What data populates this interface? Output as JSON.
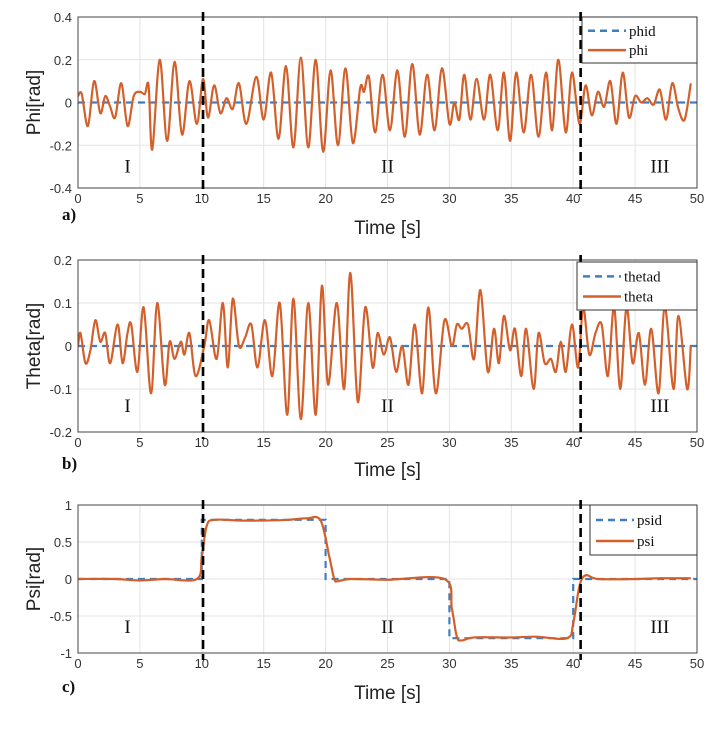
{
  "colors": {
    "desired": "#3f7fbf",
    "actual": "#d3602b",
    "phase_line": "#000000",
    "grid": "#e3e3e3"
  },
  "chart_data": [
    {
      "type": "line",
      "panel_label": "a)",
      "title": "",
      "xlabel": "Time [s]",
      "ylabel": "Phi[rad]",
      "xlim": [
        0,
        50
      ],
      "ylim": [
        -0.4,
        0.4
      ],
      "grid": true,
      "legend_placement": "top-right",
      "xticks": [
        "0",
        "5",
        "10",
        "15",
        "20",
        "25",
        "30",
        "35",
        "40",
        "45",
        "50"
      ],
      "yticks": [
        "-0.4",
        "-0.2",
        "0",
        "0.2",
        "0.4"
      ],
      "ytick_values": [
        -0.4,
        -0.2,
        0,
        0.2,
        0.4
      ],
      "phase_lines": [
        10.1,
        40.6
      ],
      "phases": [
        {
          "label": "I",
          "t": 4,
          "y": -0.3
        },
        {
          "label": "II",
          "t": 25,
          "y": -0.3
        },
        {
          "label": "III",
          "t": 47,
          "y": -0.3
        }
      ],
      "series": [
        {
          "name": "phid",
          "style": "dashed",
          "x": [
            0,
            50
          ],
          "y": [
            0,
            0
          ]
        },
        {
          "name": "phi",
          "style": "solid",
          "x": [
            0,
            0.3,
            0.8,
            1.3,
            1.8,
            2.2,
            2.6,
            3.0,
            3.5,
            4.0,
            4.5,
            5.0,
            5.4,
            5.7,
            6.0,
            6.6,
            7.2,
            7.8,
            8.4,
            9.0,
            9.6,
            10.1,
            10.5,
            11.0,
            11.5,
            12.0,
            12.5,
            13.0,
            13.6,
            14.4,
            15.0,
            15.6,
            16.2,
            16.8,
            17.4,
            18.0,
            18.6,
            19.2,
            19.8,
            20.4,
            21.0,
            21.6,
            22.2,
            22.8,
            23.1,
            23.5,
            24.0,
            24.6,
            25.2,
            25.8,
            26.4,
            27.0,
            27.6,
            28.2,
            28.8,
            29.4,
            30.0,
            30.4,
            30.8,
            31.2,
            31.7,
            32.2,
            32.8,
            33.3,
            33.9,
            34.4,
            34.9,
            35.4,
            36.0,
            36.6,
            37.2,
            37.8,
            38.3,
            38.8,
            39.4,
            39.9,
            40.5,
            41.0,
            41.5,
            42.0,
            42.5,
            43.0,
            43.5,
            44.0,
            44.5,
            45.0,
            45.5,
            46.0,
            46.5,
            47.0,
            47.5,
            48.0,
            48.5,
            49.0,
            49.5
          ],
          "y": [
            0.03,
            0.04,
            -0.11,
            0.1,
            -0.05,
            0.03,
            -0.02,
            -0.07,
            0.09,
            -0.11,
            0.03,
            0.05,
            0.04,
            0.08,
            -0.22,
            0.2,
            -0.18,
            0.19,
            -0.15,
            0.1,
            -0.1,
            0.11,
            -0.07,
            0.08,
            -0.05,
            0.02,
            -0.03,
            0.09,
            -0.1,
            0.12,
            -0.08,
            0.14,
            -0.17,
            0.17,
            -0.21,
            0.21,
            -0.21,
            0.2,
            -0.23,
            0.15,
            -0.2,
            0.16,
            -0.19,
            0.07,
            0.05,
            0.12,
            -0.14,
            0.13,
            -0.13,
            0.15,
            -0.16,
            0.18,
            -0.15,
            0.13,
            -0.13,
            0.16,
            -0.1,
            0.0,
            -0.08,
            0.13,
            -0.08,
            0.11,
            -0.08,
            0.13,
            -0.13,
            0.14,
            -0.18,
            0.14,
            -0.14,
            0.13,
            -0.16,
            0.14,
            -0.13,
            0.2,
            -0.14,
            0.14,
            -0.1,
            0.08,
            -0.06,
            0.05,
            -0.02,
            0.1,
            -0.1,
            0.14,
            -0.07,
            0.03,
            0.0,
            0.02,
            -0.01,
            0.06,
            -0.08,
            0.09,
            -0.03,
            -0.08,
            0.09
          ]
        }
      ]
    },
    {
      "type": "line",
      "panel_label": "b)",
      "title": "",
      "xlabel": "Time [s]",
      "ylabel": "Theta[rad]",
      "xlim": [
        0,
        50
      ],
      "ylim": [
        -0.2,
        0.2
      ],
      "grid": true,
      "legend_placement": "top-right",
      "xticks": [
        "0",
        "5",
        "10",
        "15",
        "20",
        "25",
        "30",
        "35",
        "40",
        "45",
        "50"
      ],
      "yticks": [
        "-0.2",
        "-0.1",
        "0",
        "0.1",
        "0.2"
      ],
      "ytick_values": [
        -0.2,
        -0.1,
        0,
        0.1,
        0.2
      ],
      "phase_lines": [
        10.1,
        40.6
      ],
      "phases": [
        {
          "label": "I",
          "t": 4,
          "y": -0.14
        },
        {
          "label": "II",
          "t": 25,
          "y": -0.14
        },
        {
          "label": "III",
          "t": 47,
          "y": -0.14
        }
      ],
      "series": [
        {
          "name": "thetad",
          "style": "dashed",
          "x": [
            0,
            50
          ],
          "y": [
            0,
            0
          ]
        },
        {
          "name": "theta",
          "style": "solid",
          "x": [
            0,
            0.2,
            0.6,
            1.0,
            1.4,
            1.8,
            2.2,
            2.6,
            3.2,
            3.6,
            4.0,
            4.3,
            4.8,
            5.3,
            5.9,
            6.4,
            7.0,
            7.4,
            7.8,
            8.3,
            8.6,
            9.0,
            9.5,
            10.2,
            10.6,
            11.2,
            11.7,
            12.1,
            12.5,
            13.0,
            13.5,
            14.0,
            14.5,
            15.1,
            15.7,
            16.3,
            16.9,
            17.4,
            18.0,
            18.6,
            19.2,
            19.7,
            20.2,
            20.9,
            21.5,
            22.0,
            22.6,
            23.2,
            23.8,
            24.2,
            24.7,
            25.2,
            25.7,
            26.2,
            26.7,
            27.2,
            27.8,
            28.3,
            28.9,
            29.6,
            30.2,
            30.6,
            31.0,
            31.5,
            32.0,
            32.5,
            33.1,
            33.6,
            34.0,
            34.4,
            34.9,
            35.3,
            35.8,
            36.2,
            36.8,
            37.2,
            37.7,
            38.2,
            38.6,
            39.0,
            39.4,
            39.9,
            40.4,
            40.8,
            41.3,
            41.8,
            42.3,
            42.8,
            43.3,
            43.8,
            44.3,
            44.8,
            45.3,
            45.8,
            46.3,
            46.9,
            47.4,
            48.1,
            48.5,
            49.2,
            49.5
          ],
          "y": [
            0.0,
            0.03,
            -0.04,
            -0.01,
            0.06,
            0.01,
            0.03,
            -0.04,
            0.05,
            -0.04,
            0.03,
            0.05,
            -0.06,
            0.09,
            -0.11,
            0.1,
            -0.09,
            0.01,
            -0.03,
            0.01,
            -0.02,
            0.03,
            -0.07,
            0.0,
            0.06,
            -0.03,
            0.1,
            -0.05,
            0.11,
            0.0,
            0.02,
            0.05,
            -0.05,
            0.06,
            -0.07,
            0.1,
            -0.16,
            0.11,
            -0.17,
            0.1,
            -0.16,
            0.14,
            -0.09,
            0.1,
            -0.1,
            0.17,
            -0.13,
            0.09,
            -0.05,
            0.03,
            -0.02,
            0.02,
            -0.06,
            0.0,
            -0.09,
            0.05,
            -0.11,
            0.09,
            -0.11,
            0.06,
            0.0,
            0.05,
            0.04,
            0.05,
            -0.03,
            0.13,
            -0.06,
            0.04,
            -0.04,
            0.07,
            -0.01,
            0.04,
            -0.07,
            0.04,
            -0.1,
            0.03,
            -0.04,
            -0.03,
            -0.06,
            0.01,
            -0.06,
            0.05,
            -0.05,
            0.09,
            -0.02,
            0.03,
            0.05,
            -0.07,
            0.09,
            -0.1,
            0.09,
            -0.04,
            0.03,
            -0.09,
            0.04,
            -0.11,
            0.09,
            -0.1,
            0.07,
            -0.1,
            0.0
          ]
        }
      ]
    },
    {
      "type": "line",
      "panel_label": "c)",
      "title": "",
      "xlabel": "Time [s]",
      "ylabel": "Psi[rad]",
      "xlim": [
        0,
        50
      ],
      "ylim": [
        -1,
        1
      ],
      "grid": true,
      "legend_placement": "top-right",
      "xticks": [
        "0",
        "5",
        "10",
        "15",
        "20",
        "25",
        "30",
        "35",
        "40",
        "45",
        "50"
      ],
      "yticks": [
        "-1",
        "-0.5",
        "0",
        "0.5",
        "1"
      ],
      "ytick_values": [
        -1,
        -0.5,
        0,
        0.5,
        1
      ],
      "phase_lines": [
        10.1,
        40.6
      ],
      "phases": [
        {
          "label": "I",
          "t": 4,
          "y": -0.65
        },
        {
          "label": "II",
          "t": 25,
          "y": -0.65
        },
        {
          "label": "III",
          "t": 47,
          "y": -0.65
        }
      ],
      "series": [
        {
          "name": "psid",
          "style": "dashed",
          "step": true,
          "x": [
            0,
            10,
            10,
            20,
            20,
            30,
            30,
            40,
            40,
            50
          ],
          "y": [
            0,
            0,
            0.8,
            0.8,
            0,
            0,
            -0.8,
            -0.8,
            0,
            0
          ]
        },
        {
          "name": "psi",
          "style": "solid",
          "x": [
            0,
            3,
            5,
            7,
            9.6,
            10.0,
            10.4,
            11,
            13,
            15,
            17,
            18.5,
            19.6,
            20.3,
            20.7,
            21,
            22,
            25,
            29.6,
            30.2,
            30.6,
            31,
            32,
            35,
            37,
            39.5,
            40.0,
            40.5,
            41,
            42,
            45,
            47,
            49.5
          ],
          "y": [
            0,
            0.0,
            -0.02,
            0.0,
            0,
            0.3,
            0.72,
            0.8,
            0.79,
            0.79,
            0.8,
            0.82,
            0.79,
            0.3,
            0.0,
            -0.03,
            0,
            -0.01,
            0,
            -0.4,
            -0.78,
            -0.83,
            -0.79,
            -0.79,
            -0.78,
            -0.8,
            -0.6,
            -0.1,
            0.05,
            0,
            0.0,
            0.01,
            0.01
          ]
        }
      ]
    }
  ]
}
